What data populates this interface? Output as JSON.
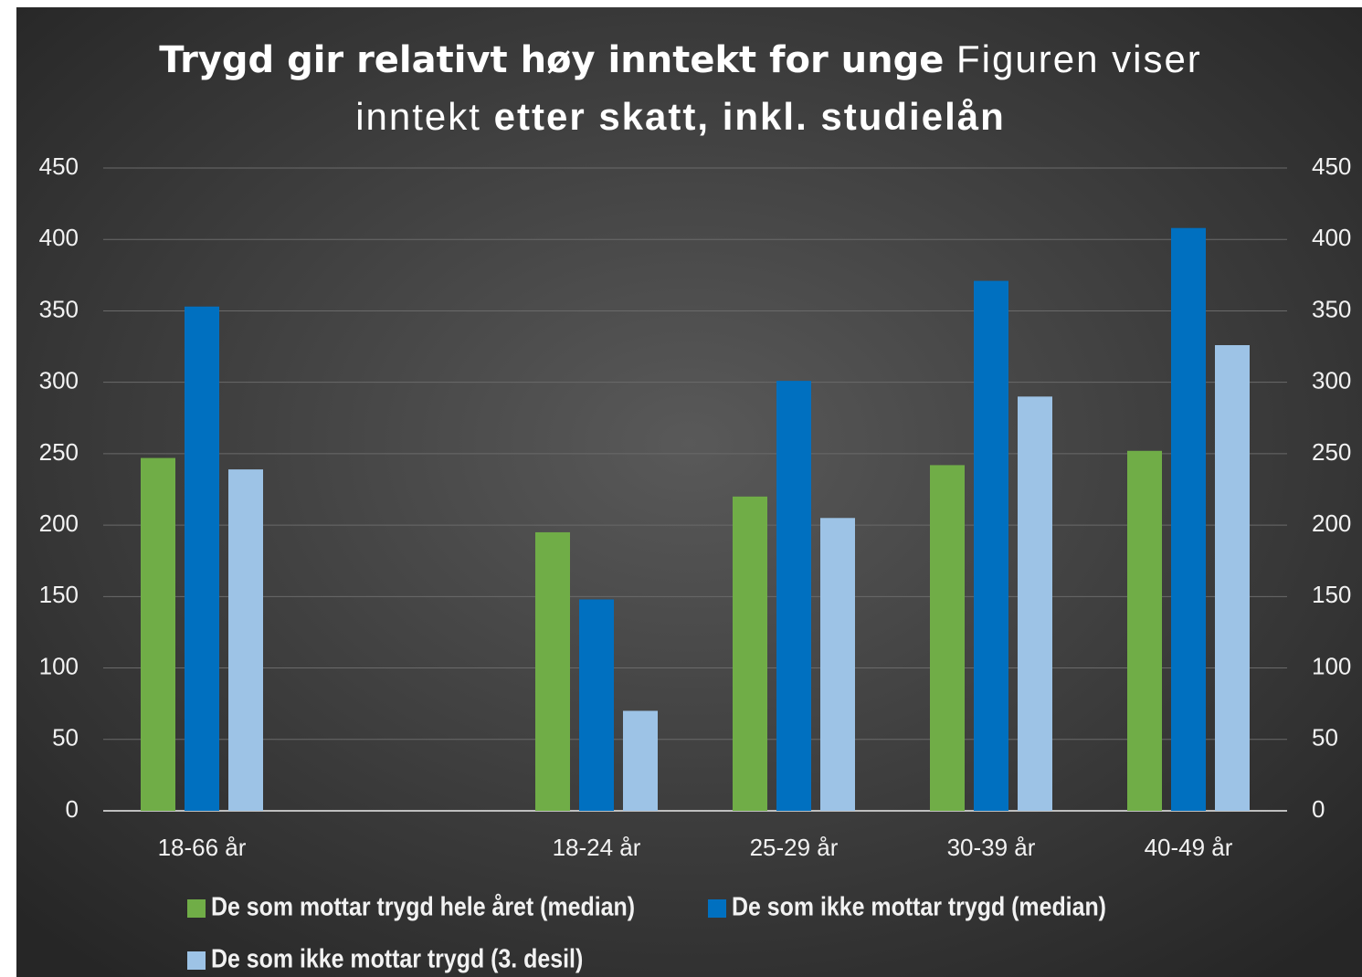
{
  "chart_data": {
    "type": "bar",
    "title": [
      "Trygd gir relativt høy inntekt for unge",
      "Figuren viser inntekt",
      "etter skatt, inkl. studielån"
    ],
    "categories": [
      "18-66 år",
      null,
      "18-24 år",
      "25-29 år",
      "30-39 år",
      "40-49 år"
    ],
    "series": [
      {
        "name": "De som mottar trygd hele året (median)",
        "color": "#70ad47",
        "values": [
          247,
          null,
          195,
          220,
          242,
          252
        ]
      },
      {
        "name": "De som ikke mottar trygd (median)",
        "color": "#0070c0",
        "values": [
          353,
          null,
          148,
          301,
          371,
          408
        ]
      },
      {
        "name": "De som ikke mottar trygd (3. desil)",
        "color": "#9dc3e6",
        "values": [
          239,
          null,
          70,
          205,
          290,
          326
        ]
      }
    ],
    "ylim": [
      0,
      450
    ],
    "yticks": [
      0,
      50,
      100,
      150,
      200,
      250,
      300,
      350,
      400,
      450
    ],
    "y2lim": [
      0,
      450
    ],
    "y2ticks": [
      0,
      50,
      100,
      150,
      200,
      250,
      300,
      350,
      400,
      450
    ],
    "grid": true,
    "legend": "bottom"
  }
}
